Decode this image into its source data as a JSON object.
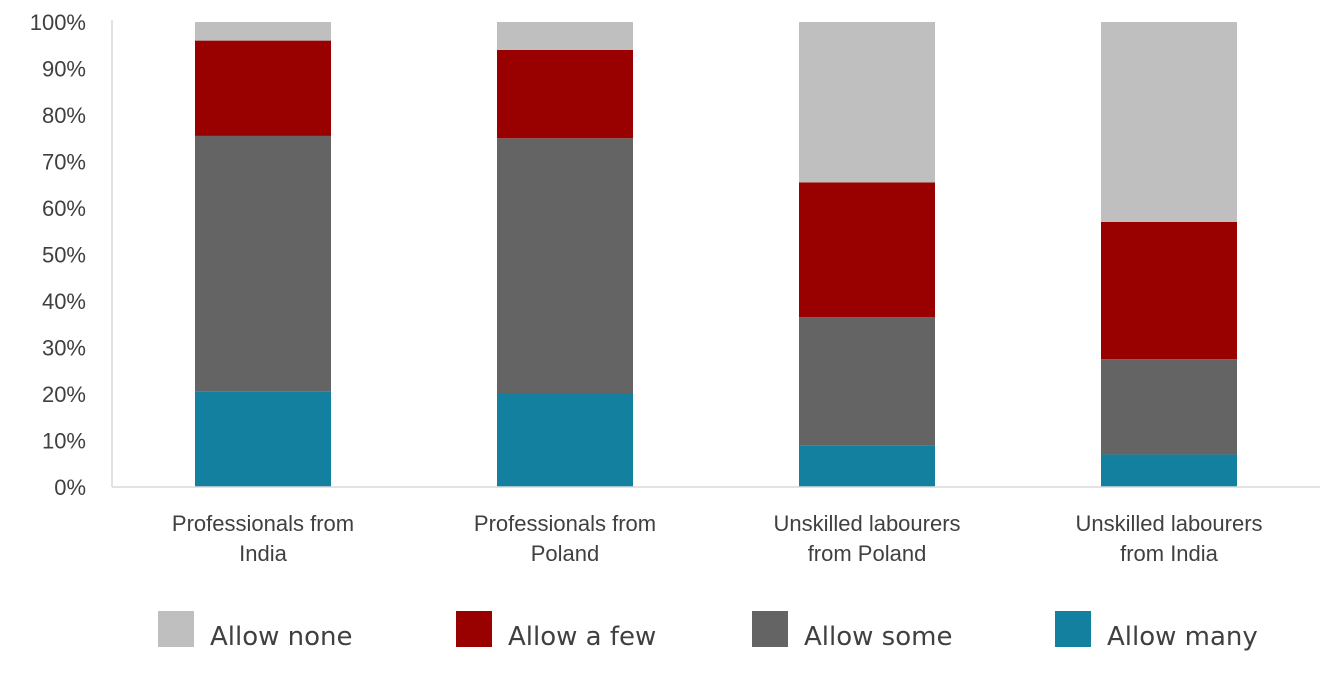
{
  "chart_data": {
    "type": "bar",
    "stacked": true,
    "categories": [
      [
        "Professionals from",
        "India"
      ],
      [
        "Professionals from",
        "Poland"
      ],
      [
        "Unskilled labourers",
        "from Poland"
      ],
      [
        "Unskilled labourers",
        "from India"
      ]
    ],
    "series": [
      {
        "name": "Allow many",
        "color": "#13809f",
        "values": [
          20.5,
          20,
          9,
          7
        ]
      },
      {
        "name": "Allow some",
        "color": "#646464",
        "values": [
          55,
          55,
          27.5,
          20.5
        ]
      },
      {
        "name": "Allow a few",
        "color": "#990000",
        "values": [
          20.5,
          19,
          29,
          29.5
        ]
      },
      {
        "name": "Allow none",
        "color": "#bfbfbf",
        "values": [
          4,
          6,
          34.5,
          43
        ]
      }
    ],
    "legend_order": [
      "Allow none",
      "Allow a few",
      "Allow some",
      "Allow many"
    ],
    "y_ticks": [
      "0%",
      "10%",
      "20%",
      "30%",
      "40%",
      "50%",
      "60%",
      "70%",
      "80%",
      "90%",
      "100%"
    ],
    "ylim": [
      0,
      100
    ],
    "legend_position": "bottom",
    "grid": false
  }
}
